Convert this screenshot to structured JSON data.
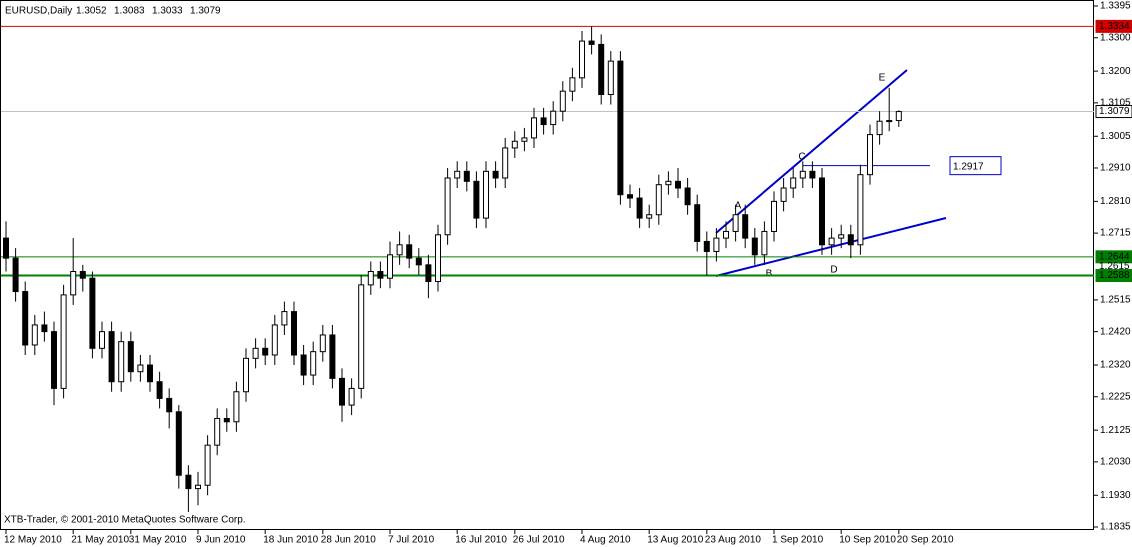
{
  "chart_data": {
    "type": "candlestick",
    "title": "EURUSD,Daily",
    "footer": "XTB-Trader, © 2001-2010 MetaQuotes Software Corp.",
    "categories": [
      "12 May 2010",
      null,
      null,
      null,
      null,
      null,
      null,
      "21 May 2010",
      null,
      null,
      null,
      null,
      null,
      "31 May 2010",
      null,
      null,
      null,
      null,
      null,
      null,
      "9 Jun 2010",
      null,
      null,
      null,
      null,
      null,
      null,
      "18 Jun 2010",
      null,
      null,
      null,
      null,
      null,
      "28 Jun 2010",
      null,
      null,
      null,
      null,
      null,
      null,
      "7 Jul 2010",
      null,
      null,
      null,
      null,
      null,
      null,
      "16 Jul 2010",
      null,
      null,
      null,
      null,
      null,
      "26 Jul 2010",
      null,
      null,
      null,
      null,
      null,
      null,
      "4 Aug 2010",
      null,
      null,
      null,
      null,
      null,
      null,
      "13 Aug 2010",
      null,
      null,
      null,
      null,
      null,
      "23 Aug 2010",
      null,
      null,
      null,
      null,
      null,
      null,
      "1 Sep 2010",
      null,
      null,
      null,
      null,
      null,
      null,
      "10 Sep 2010",
      null,
      null,
      null,
      null,
      null,
      "20 Sep 2010"
    ],
    "ohlc": [
      [
        1.27,
        1.275,
        1.26,
        1.264
      ],
      [
        1.264,
        1.267,
        1.251,
        1.254
      ],
      [
        1.254,
        1.257,
        1.235,
        1.238
      ],
      [
        1.238,
        1.247,
        1.235,
        1.244
      ],
      [
        1.244,
        1.248,
        1.239,
        1.242
      ],
      [
        1.242,
        1.245,
        1.22,
        1.225
      ],
      [
        1.225,
        1.256,
        1.222,
        1.253
      ],
      [
        1.253,
        1.27,
        1.25,
        1.26
      ],
      [
        1.26,
        1.262,
        1.254,
        1.258
      ],
      [
        1.258,
        1.26,
        1.234,
        1.237
      ],
      [
        1.237,
        1.245,
        1.234,
        1.242
      ],
      [
        1.242,
        1.245,
        1.224,
        1.227
      ],
      [
        1.227,
        1.242,
        1.224,
        1.239
      ],
      [
        1.239,
        1.242,
        1.227,
        1.23
      ],
      [
        1.23,
        1.235,
        1.227,
        1.232
      ],
      [
        1.232,
        1.235,
        1.224,
        1.227
      ],
      [
        1.227,
        1.23,
        1.219,
        1.222
      ],
      [
        1.222,
        1.225,
        1.213,
        1.218
      ],
      [
        1.218,
        1.22,
        1.195,
        1.199
      ],
      [
        1.199,
        1.202,
        1.188,
        1.195
      ],
      [
        1.195,
        1.2,
        1.19,
        1.196
      ],
      [
        1.196,
        1.211,
        1.193,
        1.208
      ],
      [
        1.208,
        1.219,
        1.205,
        1.216
      ],
      [
        1.216,
        1.219,
        1.212,
        1.215
      ],
      [
        1.215,
        1.227,
        1.212,
        1.224
      ],
      [
        1.224,
        1.237,
        1.221,
        1.234
      ],
      [
        1.234,
        1.24,
        1.231,
        1.237
      ],
      [
        1.237,
        1.24,
        1.232,
        1.235
      ],
      [
        1.235,
        1.247,
        1.232,
        1.244
      ],
      [
        1.244,
        1.251,
        1.241,
        1.248
      ],
      [
        1.248,
        1.251,
        1.232,
        1.235
      ],
      [
        1.235,
        1.238,
        1.226,
        1.229
      ],
      [
        1.229,
        1.239,
        1.226,
        1.236
      ],
      [
        1.236,
        1.244,
        1.233,
        1.241
      ],
      [
        1.241,
        1.244,
        1.225,
        1.228
      ],
      [
        1.228,
        1.231,
        1.215,
        1.22
      ],
      [
        1.22,
        1.228,
        1.217,
        1.225
      ],
      [
        1.225,
        1.259,
        1.222,
        1.256
      ],
      [
        1.256,
        1.263,
        1.253,
        1.26
      ],
      [
        1.26,
        1.263,
        1.255,
        1.258
      ],
      [
        1.258,
        1.269,
        1.255,
        1.265
      ],
      [
        1.265,
        1.272,
        1.262,
        1.268
      ],
      [
        1.268,
        1.271,
        1.261,
        1.264
      ],
      [
        1.264,
        1.267,
        1.259,
        1.262
      ],
      [
        1.262,
        1.265,
        1.252,
        1.257
      ],
      [
        1.257,
        1.274,
        1.254,
        1.271
      ],
      [
        1.271,
        1.291,
        1.268,
        1.288
      ],
      [
        1.288,
        1.293,
        1.285,
        1.29
      ],
      [
        1.29,
        1.293,
        1.284,
        1.287
      ],
      [
        1.287,
        1.29,
        1.273,
        1.276
      ],
      [
        1.276,
        1.293,
        1.273,
        1.29
      ],
      [
        1.29,
        1.293,
        1.285,
        1.288
      ],
      [
        1.288,
        1.3,
        1.285,
        1.297
      ],
      [
        1.297,
        1.302,
        1.294,
        1.299
      ],
      [
        1.299,
        1.303,
        1.296,
        1.3
      ],
      [
        1.3,
        1.309,
        1.297,
        1.306
      ],
      [
        1.306,
        1.309,
        1.301,
        1.304
      ],
      [
        1.304,
        1.311,
        1.301,
        1.308
      ],
      [
        1.308,
        1.317,
        1.305,
        1.314
      ],
      [
        1.314,
        1.321,
        1.311,
        1.318
      ],
      [
        1.318,
        1.332,
        1.315,
        1.329
      ],
      [
        1.329,
        1.3334,
        1.325,
        1.328
      ],
      [
        1.328,
        1.331,
        1.31,
        1.313
      ],
      [
        1.313,
        1.326,
        1.31,
        1.323
      ],
      [
        1.323,
        1.326,
        1.28,
        1.283
      ],
      [
        1.283,
        1.286,
        1.279,
        1.282
      ],
      [
        1.282,
        1.285,
        1.273,
        1.276
      ],
      [
        1.276,
        1.28,
        1.273,
        1.277
      ],
      [
        1.277,
        1.289,
        1.274,
        1.286
      ],
      [
        1.286,
        1.29,
        1.283,
        1.287
      ],
      [
        1.287,
        1.291,
        1.282,
        1.285
      ],
      [
        1.285,
        1.288,
        1.277,
        1.28
      ],
      [
        1.28,
        1.283,
        1.266,
        1.269
      ],
      [
        1.269,
        1.272,
        1.2588,
        1.266
      ],
      [
        1.266,
        1.273,
        1.263,
        1.27
      ],
      [
        1.27,
        1.275,
        1.267,
        1.272
      ],
      [
        1.272,
        1.28,
        1.269,
        1.277
      ],
      [
        1.277,
        1.28,
        1.267,
        1.27
      ],
      [
        1.27,
        1.273,
        1.262,
        1.265
      ],
      [
        1.265,
        1.275,
        1.262,
        1.272
      ],
      [
        1.272,
        1.284,
        1.269,
        1.281
      ],
      [
        1.281,
        1.288,
        1.278,
        1.285
      ],
      [
        1.285,
        1.291,
        1.282,
        1.288
      ],
      [
        1.288,
        1.293,
        1.285,
        1.29
      ],
      [
        1.29,
        1.293,
        1.285,
        1.288
      ],
      [
        1.288,
        1.291,
        1.265,
        1.268
      ],
      [
        1.268,
        1.273,
        1.265,
        1.27
      ],
      [
        1.27,
        1.274,
        1.267,
        1.271
      ],
      [
        1.271,
        1.274,
        1.264,
        1.268
      ],
      [
        1.268,
        1.292,
        1.265,
        1.289
      ],
      [
        1.289,
        1.304,
        1.286,
        1.301
      ],
      [
        1.301,
        1.308,
        1.298,
        1.305
      ],
      [
        1.305,
        1.315,
        1.302,
        1.3052
      ],
      [
        1.3052,
        1.3083,
        1.3033,
        1.3079
      ]
    ],
    "ylim": [
      1.1826,
      1.3413
    ],
    "yticks": [
      1.3395,
      {
        "value": 1.33,
        "label": "1.3300"
      },
      {
        "value": 1.32,
        "label": "1.3200"
      },
      1.3105,
      1.3005,
      {
        "value": 1.291,
        "label": "1.2910"
      },
      {
        "value": 1.281,
        "label": "1.2810"
      },
      1.2715,
      1.2515,
      {
        "value": 1.242,
        "label": "1.2420"
      },
      {
        "value": 1.232,
        "label": "1.2320"
      },
      1.2225,
      1.2125,
      {
        "value": 1.203,
        "label": "1.2030"
      },
      {
        "value": 1.193,
        "label": "1.1930"
      },
      1.1835
    ],
    "price_lines": [
      {
        "value": 1.3334,
        "color": "#d40000",
        "width": 1
      },
      {
        "value": 1.3079,
        "color": "#c0c0c0",
        "width": 1
      },
      {
        "value": 1.2644,
        "color": "#008000",
        "width": 1
      },
      {
        "value": 1.2615,
        "color": "#ffffff",
        "width": 0
      },
      {
        "value": 1.2588,
        "color": "#008000",
        "width": 2
      }
    ],
    "level_annotation": 1.2917,
    "pattern_labels": [
      "A",
      "B",
      "C",
      "D",
      "E"
    ]
  }
}
